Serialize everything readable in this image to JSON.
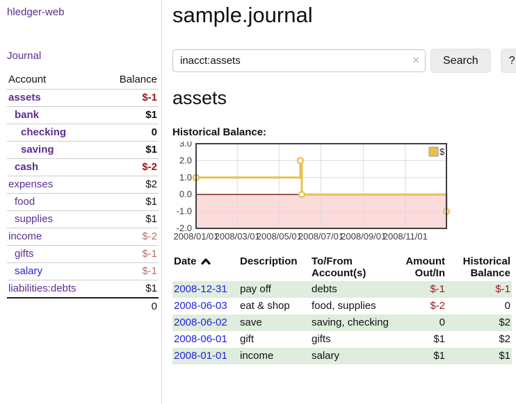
{
  "sidebar": {
    "brand": "hledger-web",
    "journal_label": "Journal",
    "accounts_table": {
      "headers": [
        "Account",
        "Balance"
      ],
      "rows": [
        {
          "account": "assets",
          "balance": "$-1"
        },
        {
          "account": "bank",
          "balance": "$1"
        },
        {
          "account": "checking",
          "balance": "0"
        },
        {
          "account": "saving",
          "balance": "$1"
        },
        {
          "account": "cash",
          "balance": "$-2"
        },
        {
          "account": "expenses",
          "balance": "$2"
        },
        {
          "account": "food",
          "balance": "$1"
        },
        {
          "account": "supplies",
          "balance": "$1"
        },
        {
          "account": "income",
          "balance": "$-2"
        },
        {
          "account": "gifts",
          "balance": "$-1"
        },
        {
          "account": "salary",
          "balance": "$-1"
        },
        {
          "account": "liabilities:debts",
          "balance": "$1"
        }
      ],
      "total": "0"
    }
  },
  "main": {
    "title": "sample.journal",
    "search": {
      "value": "inacct:assets",
      "clear_icon": "×",
      "button_label": "Search",
      "help_label": "?"
    },
    "account_heading": "assets",
    "chart_heading": "Historical Balance:",
    "register_table": {
      "headers": {
        "date": "Date",
        "description": "Description",
        "accounts": "To/From Account(s)",
        "amount": "Amount Out/In",
        "balance": "Historical Balance"
      },
      "rows": [
        {
          "date": "2008-12-31",
          "description": "pay off",
          "accounts": "debts",
          "amount": "$-1",
          "balance": "$-1"
        },
        {
          "date": "2008-06-03",
          "description": "eat & shop",
          "accounts": "food, supplies",
          "amount": "$-2",
          "balance": "0"
        },
        {
          "date": "2008-06-02",
          "description": "save",
          "accounts": "saving, checking",
          "amount": "0",
          "balance": "$2"
        },
        {
          "date": "2008-06-01",
          "description": "gift",
          "accounts": "gifts",
          "amount": "$1",
          "balance": "$2"
        },
        {
          "date": "2008-01-01",
          "description": "income",
          "accounts": "salary",
          "amount": "$1",
          "balance": "$1"
        }
      ]
    }
  },
  "chart_data": {
    "type": "line",
    "step": true,
    "series": [
      {
        "name": "$",
        "color": "#e8c14d",
        "points": [
          [
            "2008-01-01",
            1.0
          ],
          [
            "2008-06-01",
            2.0
          ],
          [
            "2008-06-03",
            0.0
          ],
          [
            "2008-12-31",
            -1.0
          ]
        ]
      }
    ],
    "x_range": [
      "2008-01-01",
      "2008-12-31"
    ],
    "ylim": [
      -2.0,
      3.0
    ],
    "yticks": [
      3.0,
      2.0,
      1.0,
      0.0,
      -1.0,
      -2.0
    ],
    "xticks": [
      "2008/01/01",
      "2008/03/01",
      "2008/05/01",
      "2008/07/01",
      "2008/09/01",
      "2008/11/01"
    ],
    "legend": {
      "label": "$",
      "position": "top-right"
    },
    "grid": true,
    "negative_region_fill": "#fbdbdb",
    "zero_line_color": "#7a1010",
    "plot_border_color": "#3f3f3f",
    "grid_color": "#dcdcdc"
  },
  "colors": {
    "account_link_purple": "#5c2d91",
    "date_link_blue": "#2222dd",
    "negative_strong": "#9e1616",
    "negative_light": "#bd6e6e",
    "row_green": "#deedde",
    "series_gold": "#e8c14d",
    "negative_region_pink": "#fbdbdb"
  }
}
